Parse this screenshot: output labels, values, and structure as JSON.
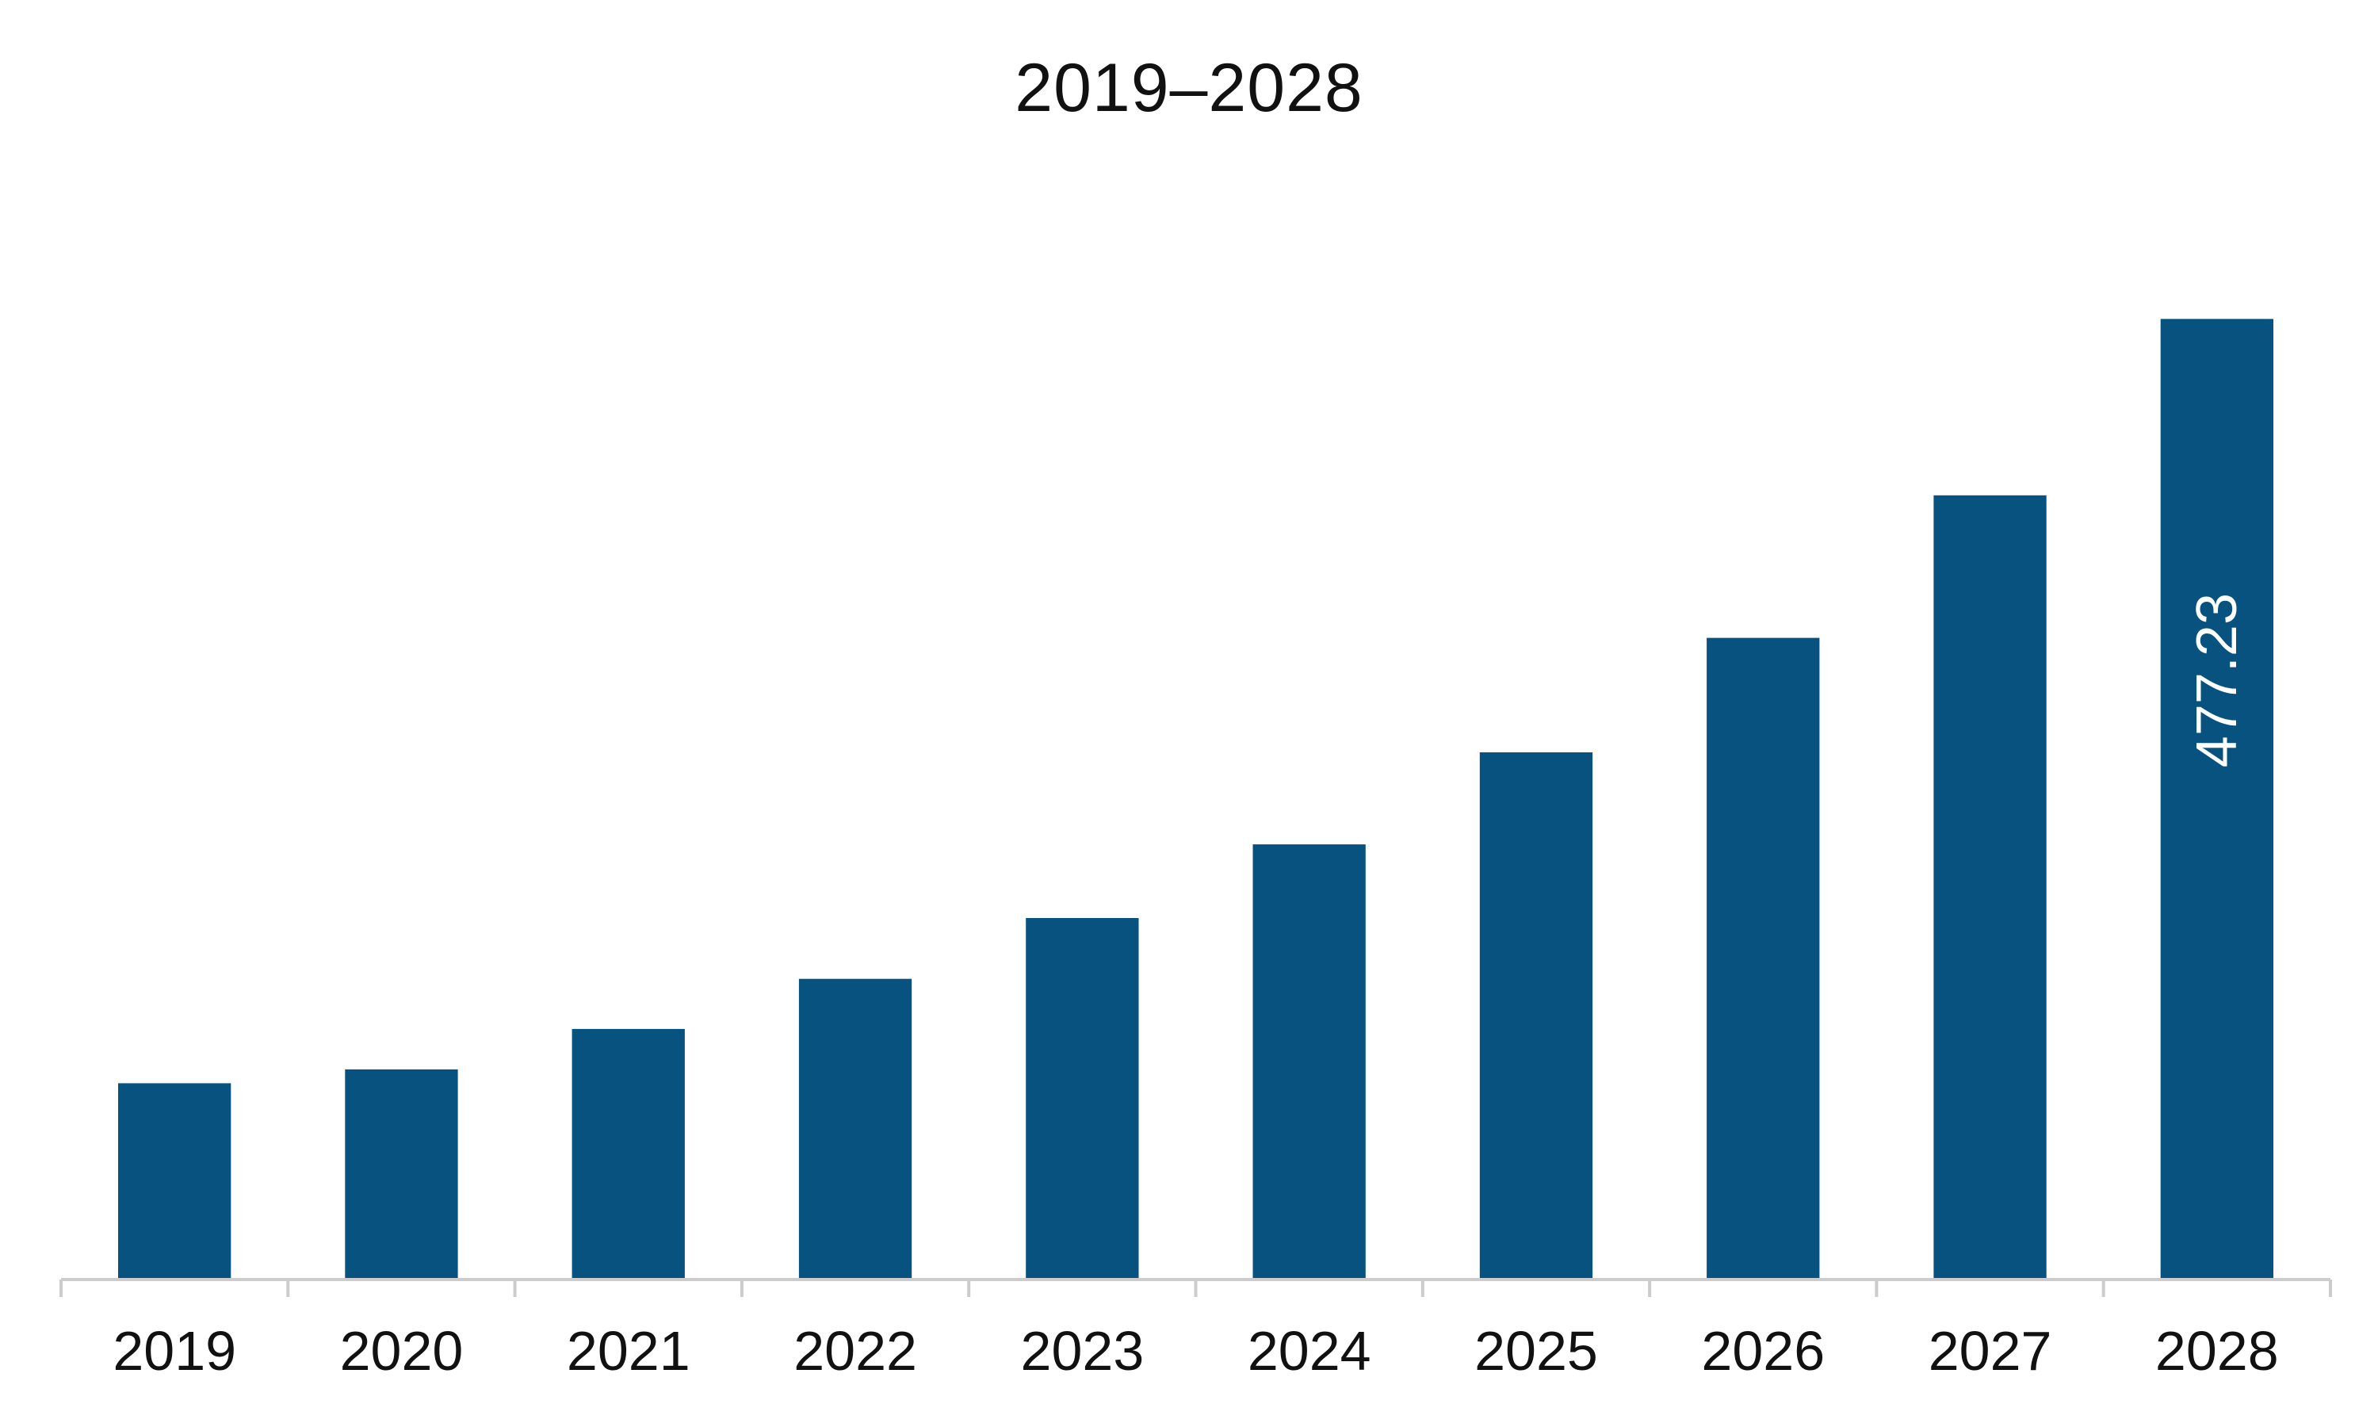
{
  "chart_data": {
    "type": "bar",
    "title": "2019–2028",
    "xlabel": "",
    "ylabel": "",
    "categories": [
      "2019",
      "2020",
      "2021",
      "2022",
      "2023",
      "2024",
      "2025",
      "2026",
      "2027",
      "2028"
    ],
    "values": [
      97.5,
      104.4,
      124.5,
      149.4,
      179.6,
      216.2,
      261.9,
      318.8,
      389.6,
      477.23
    ],
    "data_labels": [
      null,
      null,
      null,
      null,
      null,
      null,
      null,
      null,
      null,
      "477.23"
    ],
    "ylim": [
      0,
      525
    ],
    "grid": false,
    "legend": "none",
    "bar_color": "#08527f",
    "axis_color": "#cccccc",
    "data_label_color": "#ffffff"
  }
}
